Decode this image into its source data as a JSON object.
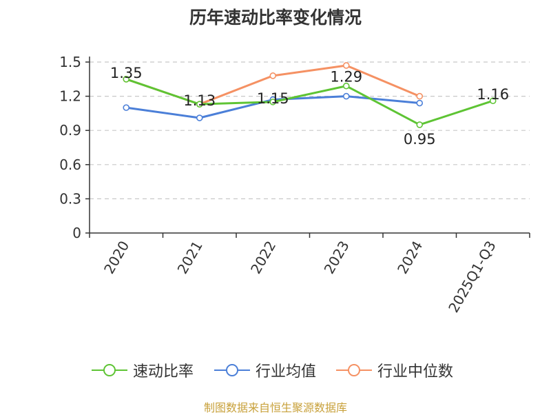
{
  "chart_data": {
    "type": "line",
    "title": "历年速动比率变化情况",
    "categories": [
      "2020",
      "2021",
      "2022",
      "2023",
      "2024",
      "2025Q1-Q3"
    ],
    "ylim": [
      0,
      1.5
    ],
    "yticks": [
      "0",
      "0.3",
      "0.6",
      "0.9",
      "1.2",
      "1.5"
    ],
    "grid": true,
    "legend_position": "bottom",
    "series": [
      {
        "name": "速动比率",
        "color": "#5ec434",
        "values": [
          1.35,
          1.13,
          1.15,
          1.29,
          0.95,
          1.16
        ],
        "labels": [
          "1.35",
          "1.13",
          "1.15",
          "1.29",
          "0.95",
          "1.16"
        ]
      },
      {
        "name": "行业均值",
        "color": "#4b7fd8",
        "values": [
          1.1,
          1.01,
          1.17,
          1.2,
          1.14,
          null
        ]
      },
      {
        "name": "行业中位数",
        "color": "#f59163",
        "values": [
          1.35,
          1.13,
          1.38,
          1.47,
          1.2,
          null
        ]
      }
    ]
  },
  "footer": "制图数据来自恒生聚源数据库"
}
